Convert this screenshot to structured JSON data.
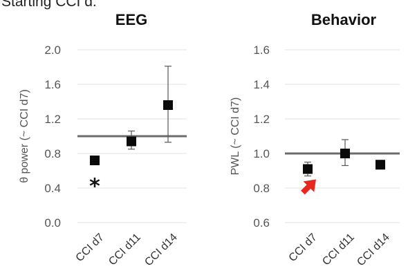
{
  "header_fragment": "Starting CCI d.",
  "chart_data": [
    {
      "type": "scatter",
      "title": "EEG",
      "ylabel": "θ power (~ CCI d7)",
      "categories": [
        "CCI d7",
        "CCI d11",
        "CCI d14"
      ],
      "values": [
        0.72,
        0.94,
        1.36
      ],
      "error_low": [
        0.72,
        0.85,
        0.93
      ],
      "error_high": [
        0.72,
        1.06,
        1.81
      ],
      "yticks": [
        "0.0",
        "0.4",
        "0.8",
        "1.2",
        "1.6",
        "2.0"
      ],
      "ylim": [
        0,
        2.0
      ],
      "reference_line": 1.0,
      "grid": true,
      "annotations": [
        {
          "text": "*",
          "category": "CCI d7",
          "y": 0.46
        }
      ]
    },
    {
      "type": "scatter",
      "title": "Behavior",
      "ylabel": "PWL (~ CCI d7)",
      "categories": [
        "CCI d7",
        "CCI d11",
        "CCI d14"
      ],
      "values": [
        0.91,
        1.0,
        0.935
      ],
      "error_low": [
        0.87,
        0.93,
        0.91
      ],
      "error_high": [
        0.95,
        1.08,
        0.96
      ],
      "yticks": [
        "0.6",
        "0.8",
        "1.0",
        "1.2",
        "1.4",
        "1.6"
      ],
      "ylim": [
        0.6,
        1.6
      ],
      "reference_line": 1.0,
      "grid": true,
      "annotations": [
        {
          "type": "arrow",
          "color": "#e8281e",
          "category": "CCI d7",
          "y": 0.85
        }
      ]
    }
  ],
  "colors": {
    "marker": "#0a0a0a",
    "reference_line": "#6b6b6b",
    "gridline": "#e0e0e0",
    "arrow": "#e8281e"
  }
}
